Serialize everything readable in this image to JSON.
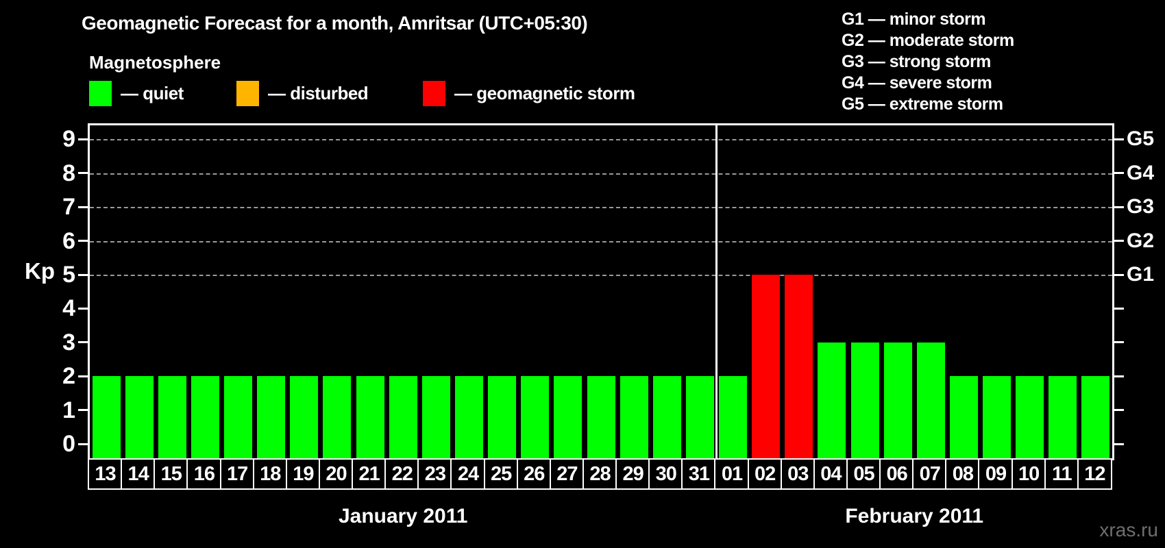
{
  "title": "Geomagnetic Forecast for a month, Amritsar (UTC+05:30)",
  "legend": {
    "heading": "Magnetosphere",
    "items": [
      {
        "name": "quiet",
        "label": "— quiet",
        "color": "#00ff00"
      },
      {
        "name": "disturbed",
        "label": "— disturbed",
        "color": "#ffb400"
      },
      {
        "name": "storm",
        "label": "— geomagnetic storm",
        "color": "#ff0000"
      }
    ]
  },
  "g_scale_legend": [
    "G1 — minor storm",
    "G2 — moderate storm",
    "G3 — strong storm",
    "G4 — severe storm",
    "G5 — extreme storm"
  ],
  "watermark": "xras.ru",
  "chart_data": {
    "type": "bar",
    "title": "Geomagnetic Forecast for a month, Amritsar (UTC+05:30)",
    "ylabel": "Kp",
    "ylim": [
      0,
      9
    ],
    "y_ticks": [
      0,
      1,
      2,
      3,
      4,
      5,
      6,
      7,
      8,
      9
    ],
    "grid_kp_levels": [
      5,
      6,
      7,
      8,
      9
    ],
    "right_axis_labels": [
      {
        "kp": 5,
        "label": "G1"
      },
      {
        "kp": 6,
        "label": "G2"
      },
      {
        "kp": 7,
        "label": "G3"
      },
      {
        "kp": 8,
        "label": "G4"
      },
      {
        "kp": 9,
        "label": "G5"
      }
    ],
    "status_colors": {
      "quiet": "#00ff00",
      "disturbed": "#ffb400",
      "storm": "#ff0000"
    },
    "months": [
      {
        "label": "January 2011",
        "days": [
          {
            "day": "13",
            "kp": 2,
            "status": "quiet"
          },
          {
            "day": "14",
            "kp": 2,
            "status": "quiet"
          },
          {
            "day": "15",
            "kp": 2,
            "status": "quiet"
          },
          {
            "day": "16",
            "kp": 2,
            "status": "quiet"
          },
          {
            "day": "17",
            "kp": 2,
            "status": "quiet"
          },
          {
            "day": "18",
            "kp": 2,
            "status": "quiet"
          },
          {
            "day": "19",
            "kp": 2,
            "status": "quiet"
          },
          {
            "day": "20",
            "kp": 2,
            "status": "quiet"
          },
          {
            "day": "21",
            "kp": 2,
            "status": "quiet"
          },
          {
            "day": "22",
            "kp": 2,
            "status": "quiet"
          },
          {
            "day": "23",
            "kp": 2,
            "status": "quiet"
          },
          {
            "day": "24",
            "kp": 2,
            "status": "quiet"
          },
          {
            "day": "25",
            "kp": 2,
            "status": "quiet"
          },
          {
            "day": "26",
            "kp": 2,
            "status": "quiet"
          },
          {
            "day": "27",
            "kp": 2,
            "status": "quiet"
          },
          {
            "day": "28",
            "kp": 2,
            "status": "quiet"
          },
          {
            "day": "29",
            "kp": 2,
            "status": "quiet"
          },
          {
            "day": "30",
            "kp": 2,
            "status": "quiet"
          },
          {
            "day": "31",
            "kp": 2,
            "status": "quiet"
          }
        ]
      },
      {
        "label": "February 2011",
        "days": [
          {
            "day": "01",
            "kp": 2,
            "status": "quiet"
          },
          {
            "day": "02",
            "kp": 5,
            "status": "storm"
          },
          {
            "day": "03",
            "kp": 5,
            "status": "storm"
          },
          {
            "day": "04",
            "kp": 3,
            "status": "quiet"
          },
          {
            "day": "05",
            "kp": 3,
            "status": "quiet"
          },
          {
            "day": "06",
            "kp": 3,
            "status": "quiet"
          },
          {
            "day": "07",
            "kp": 3,
            "status": "quiet"
          },
          {
            "day": "08",
            "kp": 2,
            "status": "quiet"
          },
          {
            "day": "09",
            "kp": 2,
            "status": "quiet"
          },
          {
            "day": "10",
            "kp": 2,
            "status": "quiet"
          },
          {
            "day": "11",
            "kp": 2,
            "status": "quiet"
          },
          {
            "day": "12",
            "kp": 2,
            "status": "quiet"
          }
        ]
      }
    ]
  }
}
